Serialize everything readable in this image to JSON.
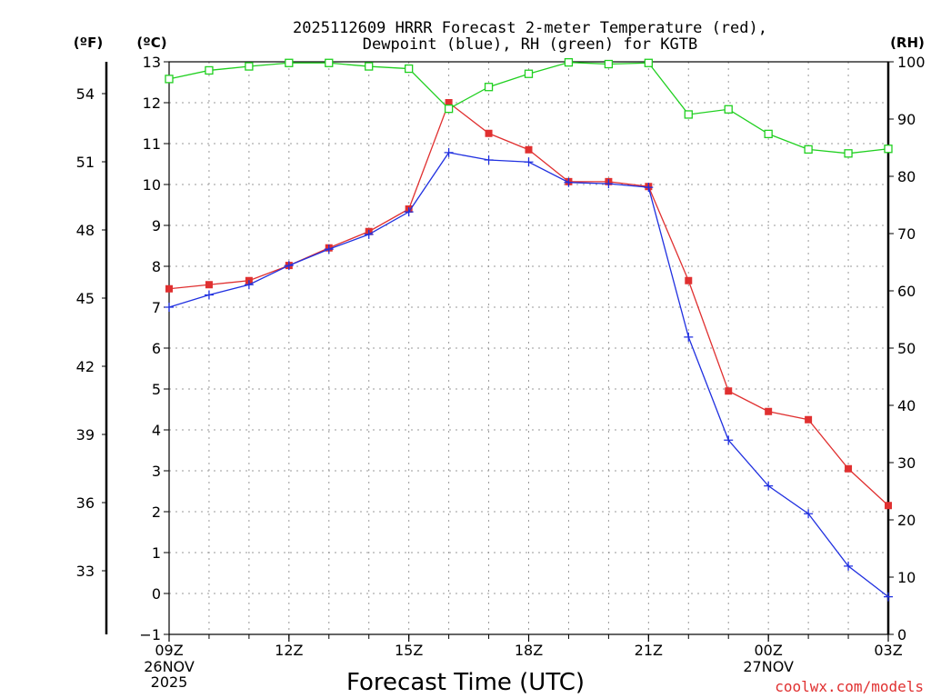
{
  "chart_data": {
    "type": "line",
    "title_line1": "2025112609 HRRR Forecast 2-meter Temperature (red),",
    "title_line2": "Dewpoint (blue), RH (green) for KGTB",
    "xlabel": "Forecast Time (UTC)",
    "unit_left_outer": "(ºF)",
    "unit_left_inner": "(ºC)",
    "unit_right": "(RH)",
    "credit": "coolwx.com/models",
    "colors": {
      "temperature": "#e03030",
      "dewpoint": "#2030e0",
      "rh": "#20d020"
    },
    "xlim": [
      9,
      27
    ],
    "ylim_c": [
      -1,
      13
    ],
    "ylim_rh": [
      0,
      100
    ],
    "x_ticks": [
      {
        "x": 9,
        "label": "09Z",
        "sub1": "26NOV",
        "sub2": "2025"
      },
      {
        "x": 12,
        "label": "12Z",
        "sub1": "",
        "sub2": ""
      },
      {
        "x": 15,
        "label": "15Z",
        "sub1": "",
        "sub2": ""
      },
      {
        "x": 18,
        "label": "18Z",
        "sub1": "",
        "sub2": ""
      },
      {
        "x": 21,
        "label": "21Z",
        "sub1": "",
        "sub2": ""
      },
      {
        "x": 24,
        "label": "00Z",
        "sub1": "27NOV",
        "sub2": ""
      },
      {
        "x": 27,
        "label": "03Z",
        "sub1": "",
        "sub2": ""
      }
    ],
    "y_ticks_c": [
      {
        "v": -1,
        "label": "−1"
      },
      {
        "v": 0,
        "label": "0"
      },
      {
        "v": 1,
        "label": "1"
      },
      {
        "v": 2,
        "label": "2"
      },
      {
        "v": 3,
        "label": "3"
      },
      {
        "v": 4,
        "label": "4"
      },
      {
        "v": 5,
        "label": "5"
      },
      {
        "v": 6,
        "label": "6"
      },
      {
        "v": 7,
        "label": "7"
      },
      {
        "v": 8,
        "label": "8"
      },
      {
        "v": 9,
        "label": "9"
      },
      {
        "v": 10,
        "label": "10"
      },
      {
        "v": 11,
        "label": "11"
      },
      {
        "v": 12,
        "label": "12"
      },
      {
        "v": 13,
        "label": "13"
      }
    ],
    "y_ticks_f": [
      {
        "v": 33,
        "label": "33"
      },
      {
        "v": 36,
        "label": "36"
      },
      {
        "v": 39,
        "label": "39"
      },
      {
        "v": 42,
        "label": "42"
      },
      {
        "v": 45,
        "label": "45"
      },
      {
        "v": 48,
        "label": "48"
      },
      {
        "v": 51,
        "label": "51"
      },
      {
        "v": 54,
        "label": "54"
      }
    ],
    "y_ticks_rh": [
      {
        "v": 0,
        "label": "0"
      },
      {
        "v": 10,
        "label": "10"
      },
      {
        "v": 20,
        "label": "20"
      },
      {
        "v": 30,
        "label": "30"
      },
      {
        "v": 40,
        "label": "40"
      },
      {
        "v": 50,
        "label": "50"
      },
      {
        "v": 60,
        "label": "60"
      },
      {
        "v": 70,
        "label": "70"
      },
      {
        "v": 80,
        "label": "80"
      },
      {
        "v": 90,
        "label": "90"
      },
      {
        "v": 100,
        "label": "100"
      }
    ],
    "x": [
      9,
      10,
      11,
      12,
      13,
      14,
      15,
      16,
      17,
      18,
      19,
      20,
      21,
      22,
      23,
      24,
      25,
      26,
      27
    ],
    "series": [
      {
        "name": "Temperature",
        "axis": "c",
        "color": "#e03030",
        "marker": "square-filled",
        "values": [
          7.45,
          7.55,
          7.65,
          8.02,
          8.45,
          8.85,
          9.4,
          12.0,
          11.25,
          10.85,
          10.07,
          10.07,
          9.95,
          7.65,
          4.95,
          4.45,
          4.25,
          3.05,
          2.15
        ]
      },
      {
        "name": "Dewpoint",
        "axis": "c",
        "color": "#2030e0",
        "marker": "plus",
        "values": [
          7.0,
          7.3,
          7.55,
          8.02,
          8.42,
          8.78,
          9.33,
          10.78,
          10.6,
          10.55,
          10.05,
          10.02,
          9.93,
          6.27,
          3.75,
          2.63,
          1.95,
          0.67,
          -0.08
        ]
      },
      {
        "name": "RH",
        "axis": "rh",
        "color": "#20d020",
        "marker": "square-open",
        "values": [
          97.0,
          98.5,
          99.2,
          99.8,
          99.8,
          99.2,
          98.8,
          91.8,
          95.6,
          97.9,
          99.9,
          99.6,
          99.8,
          90.8,
          91.7,
          87.4,
          84.7,
          84.0,
          84.8
        ]
      }
    ]
  }
}
